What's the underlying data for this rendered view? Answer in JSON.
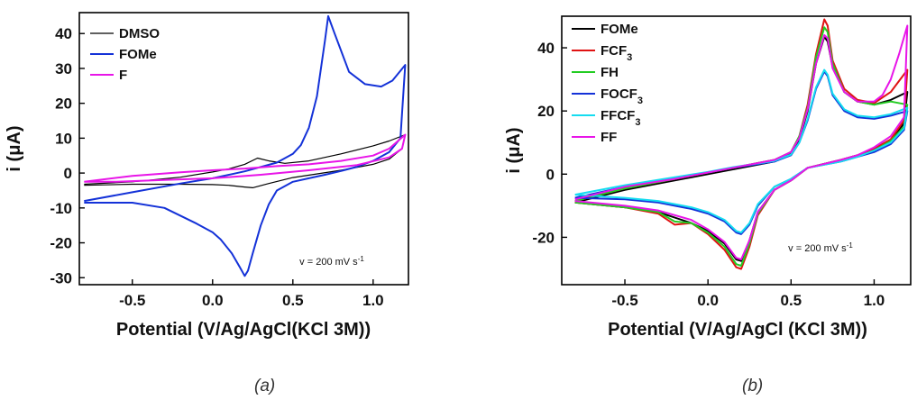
{
  "chart_data": [
    {
      "type": "line",
      "panel_label": "(a)",
      "xlabel": "Potential (V/Ag/AgCl(KCl 3M))",
      "ylabel": "i (μA)",
      "xlim": [
        -0.83,
        1.22
      ],
      "ylim": [
        -32,
        46
      ],
      "xticks": [
        -0.5,
        0.0,
        0.5,
        1.0
      ],
      "yticks": [
        -30,
        -20,
        -10,
        0,
        10,
        20,
        30,
        40
      ],
      "xtick_labels": [
        "-0.5",
        "0.0",
        "0.5",
        "1.0"
      ],
      "ytick_labels": [
        "-30",
        "-20",
        "-10",
        "0",
        "10",
        "20",
        "30",
        "40"
      ],
      "annotation": "v = 200 mV s⁻¹",
      "legend_position": "top-left",
      "grid": false,
      "series": [
        {
          "name": "DMSO",
          "color": "#000000",
          "x": [
            -0.8,
            -0.5,
            -0.2,
            0.0,
            0.1,
            0.2,
            0.28,
            0.35,
            0.45,
            0.6,
            0.8,
            1.0,
            1.1,
            1.2,
            1.18,
            1.1,
            1.0,
            0.8,
            0.5,
            0.35,
            0.25,
            0.2,
            0.1,
            0.0,
            -0.2,
            -0.5,
            -0.8
          ],
          "y": [
            -3.2,
            -2.5,
            -1.2,
            0.3,
            1.2,
            2.5,
            4.3,
            3.5,
            2.8,
            3.5,
            5.5,
            7.8,
            9.2,
            11,
            7,
            4,
            2.5,
            0.8,
            -1.3,
            -3,
            -4.2,
            -4,
            -3.5,
            -3.3,
            -3.2,
            -3.2,
            -3.5
          ]
        },
        {
          "name": "FOMe",
          "color": "#1432d8",
          "x": [
            -0.8,
            -0.5,
            -0.2,
            0.0,
            0.2,
            0.4,
            0.5,
            0.55,
            0.6,
            0.65,
            0.7,
            0.72,
            0.76,
            0.85,
            0.95,
            1.05,
            1.12,
            1.2,
            1.17,
            1.1,
            1.0,
            0.9,
            0.8,
            0.7,
            0.6,
            0.5,
            0.4,
            0.35,
            0.3,
            0.25,
            0.22,
            0.2,
            0.17,
            0.12,
            0.05,
            0.0,
            -0.1,
            -0.3,
            -0.5,
            -0.8
          ],
          "y": [
            -8,
            -5.5,
            -3,
            -1.5,
            0.5,
            3,
            5.5,
            8,
            13,
            22,
            38,
            45,
            40,
            29,
            25.5,
            24.8,
            26.5,
            31,
            10,
            6,
            3.5,
            1.8,
            0.6,
            -0.5,
            -1.5,
            -2.5,
            -5,
            -9,
            -15,
            -23,
            -28,
            -29.5,
            -27,
            -23,
            -19,
            -17,
            -14.5,
            -10,
            -8.5,
            -8.5
          ]
        },
        {
          "name": "F",
          "color": "#e815e8",
          "x": [
            -0.8,
            -0.5,
            -0.2,
            0.0,
            0.2,
            0.4,
            0.6,
            0.8,
            1.0,
            1.1,
            1.2,
            1.18,
            1.1,
            0.9,
            0.6,
            0.3,
            0.0,
            -0.3,
            -0.6,
            -0.8
          ],
          "y": [
            -2.5,
            -0.8,
            0.2,
            0.8,
            1.3,
            2,
            2.5,
            3.5,
            5,
            7,
            11,
            7,
            4.5,
            2.3,
            0.8,
            -0.5,
            -1.5,
            -2,
            -2.5,
            -2.5
          ]
        }
      ]
    },
    {
      "type": "line",
      "panel_label": "(b)",
      "xlabel": "Potential (V/Ag/AgCl (KCl 3M))",
      "ylabel": "i (μA)",
      "xlim": [
        -0.88,
        1.22
      ],
      "ylim": [
        -35,
        50
      ],
      "xticks": [
        -0.5,
        0.0,
        0.5,
        1.0
      ],
      "yticks": [
        -20,
        0,
        20,
        40
      ],
      "xtick_labels": [
        "-0.5",
        "0.0",
        "0.5",
        "1.0"
      ],
      "ytick_labels": [
        "-20",
        "0",
        "20",
        "40"
      ],
      "annotation": "v = 200 mV s⁻¹",
      "legend_position": "top-left",
      "grid": false,
      "series": [
        {
          "name": "FOMe",
          "color": "#000000",
          "x": [
            -0.8,
            -0.5,
            -0.2,
            0.0,
            0.15,
            0.3,
            0.4,
            0.5,
            0.55,
            0.6,
            0.65,
            0.7,
            0.72,
            0.75,
            0.82,
            0.9,
            1.0,
            1.1,
            1.2,
            1.18,
            1.1,
            1.0,
            0.9,
            0.8,
            0.6,
            0.5,
            0.4,
            0.3,
            0.25,
            0.2,
            0.17,
            0.1,
            0.0,
            -0.1,
            -0.3,
            -0.5,
            -0.8
          ],
          "y": [
            -9,
            -5,
            -2,
            0,
            1.5,
            3,
            4,
            6.5,
            11,
            20,
            35,
            43.5,
            42,
            34,
            26,
            23,
            22,
            23.5,
            26,
            16,
            11,
            8,
            6,
            4.5,
            2,
            -2,
            -5,
            -12,
            -21,
            -27.5,
            -27,
            -22,
            -18,
            -15.5,
            -12,
            -10.5,
            -9
          ]
        },
        {
          "name": "FCF₃",
          "color": "#e01313",
          "x": [
            -0.8,
            -0.5,
            -0.2,
            0.0,
            0.15,
            0.3,
            0.4,
            0.5,
            0.55,
            0.6,
            0.65,
            0.7,
            0.72,
            0.75,
            0.82,
            0.9,
            1.0,
            1.1,
            1.2,
            1.18,
            1.1,
            1.0,
            0.9,
            0.8,
            0.6,
            0.5,
            0.4,
            0.3,
            0.25,
            0.2,
            0.17,
            0.1,
            0.0,
            -0.1,
            -0.2,
            -0.3,
            -0.5,
            -0.8
          ],
          "y": [
            -8.5,
            -4.5,
            -1.5,
            0.5,
            2,
            3.5,
            4.5,
            7,
            12,
            22,
            38,
            49,
            47,
            36,
            27,
            23.5,
            22.5,
            26,
            33,
            17,
            11,
            8,
            6,
            4.5,
            2,
            -2,
            -5,
            -13,
            -23,
            -30,
            -29.5,
            -24,
            -19,
            -15.5,
            -16,
            -12.5,
            -10.5,
            -9
          ]
        },
        {
          "name": "FH",
          "color": "#22cc22",
          "x": [
            -0.8,
            -0.5,
            -0.2,
            0.0,
            0.15,
            0.3,
            0.4,
            0.5,
            0.55,
            0.6,
            0.65,
            0.7,
            0.72,
            0.75,
            0.82,
            0.9,
            1.0,
            1.1,
            1.2,
            1.18,
            1.1,
            1.0,
            0.9,
            0.8,
            0.6,
            0.5,
            0.4,
            0.3,
            0.25,
            0.2,
            0.17,
            0.1,
            0.0,
            -0.1,
            -0.2,
            -0.3,
            -0.5,
            -0.8
          ],
          "y": [
            -8.5,
            -4.5,
            -1.5,
            0.5,
            2,
            3.5,
            4.5,
            7,
            12,
            21,
            37,
            46.5,
            45,
            35,
            26,
            23,
            22,
            23,
            22,
            15,
            10.5,
            7.5,
            5.5,
            4.5,
            2,
            -2,
            -5,
            -12.5,
            -22,
            -29,
            -28.5,
            -23,
            -18.5,
            -15.5,
            -15,
            -12,
            -10.5,
            -9
          ]
        },
        {
          "name": "FOCF₃",
          "color": "#1432d8",
          "x": [
            -0.8,
            -0.5,
            -0.2,
            0.0,
            0.15,
            0.3,
            0.4,
            0.5,
            0.55,
            0.6,
            0.65,
            0.7,
            0.72,
            0.75,
            0.82,
            0.9,
            1.0,
            1.1,
            1.2,
            1.18,
            1.1,
            1.0,
            0.9,
            0.8,
            0.6,
            0.5,
            0.4,
            0.3,
            0.25,
            0.2,
            0.17,
            0.1,
            0.0,
            -0.1,
            -0.3,
            -0.5,
            -0.8
          ],
          "y": [
            -7.5,
            -4,
            -1.2,
            0.5,
            2,
            3.2,
            4,
            6,
            10,
            17,
            27,
            32.5,
            31,
            25,
            20,
            18,
            17.5,
            18.5,
            20,
            14,
            9.5,
            7,
            5.5,
            4,
            2,
            -1.5,
            -4,
            -10,
            -16,
            -19,
            -18.5,
            -15,
            -12.5,
            -11,
            -9,
            -8,
            -7.5
          ]
        },
        {
          "name": "FFCF₃",
          "color": "#15dcf0",
          "x": [
            -0.8,
            -0.5,
            -0.2,
            0.0,
            0.15,
            0.3,
            0.4,
            0.5,
            0.55,
            0.6,
            0.65,
            0.7,
            0.72,
            0.75,
            0.82,
            0.9,
            1.0,
            1.1,
            1.2,
            1.18,
            1.1,
            1.0,
            0.9,
            0.8,
            0.6,
            0.5,
            0.4,
            0.3,
            0.25,
            0.2,
            0.17,
            0.1,
            0.0,
            -0.1,
            -0.3,
            -0.5,
            -0.8
          ],
          "y": [
            -6.5,
            -3.5,
            -1,
            0.7,
            2.2,
            3.4,
            4.2,
            6.2,
            10,
            17.5,
            27.5,
            33,
            31.5,
            25.5,
            20.5,
            18.5,
            18,
            19,
            21,
            14.5,
            10,
            7.5,
            5.5,
            4,
            2,
            -1.5,
            -4,
            -9.5,
            -15.5,
            -18.5,
            -18,
            -14.5,
            -12,
            -10.5,
            -8.5,
            -7.5,
            -6.5
          ]
        },
        {
          "name": "FF",
          "color": "#e815e8",
          "x": [
            -0.8,
            -0.5,
            -0.2,
            0.0,
            0.15,
            0.3,
            0.4,
            0.5,
            0.55,
            0.6,
            0.65,
            0.7,
            0.72,
            0.75,
            0.82,
            0.9,
            1.0,
            1.05,
            1.1,
            1.15,
            1.2,
            1.18,
            1.1,
            1.0,
            0.9,
            0.8,
            0.6,
            0.5,
            0.4,
            0.3,
            0.25,
            0.2,
            0.17,
            0.1,
            0.0,
            -0.1,
            -0.3,
            -0.5,
            -0.8
          ],
          "y": [
            -8,
            -4,
            -1.5,
            0.5,
            2,
            3.5,
            4.5,
            7,
            11.5,
            20.5,
            35,
            44,
            43,
            33.5,
            26,
            23,
            23,
            25,
            30,
            38,
            47,
            18,
            12,
            8.5,
            6,
            4.5,
            2,
            -2,
            -5,
            -12,
            -21,
            -27,
            -26.5,
            -21.5,
            -17.5,
            -14.5,
            -11.5,
            -10,
            -8.5
          ]
        }
      ]
    }
  ]
}
